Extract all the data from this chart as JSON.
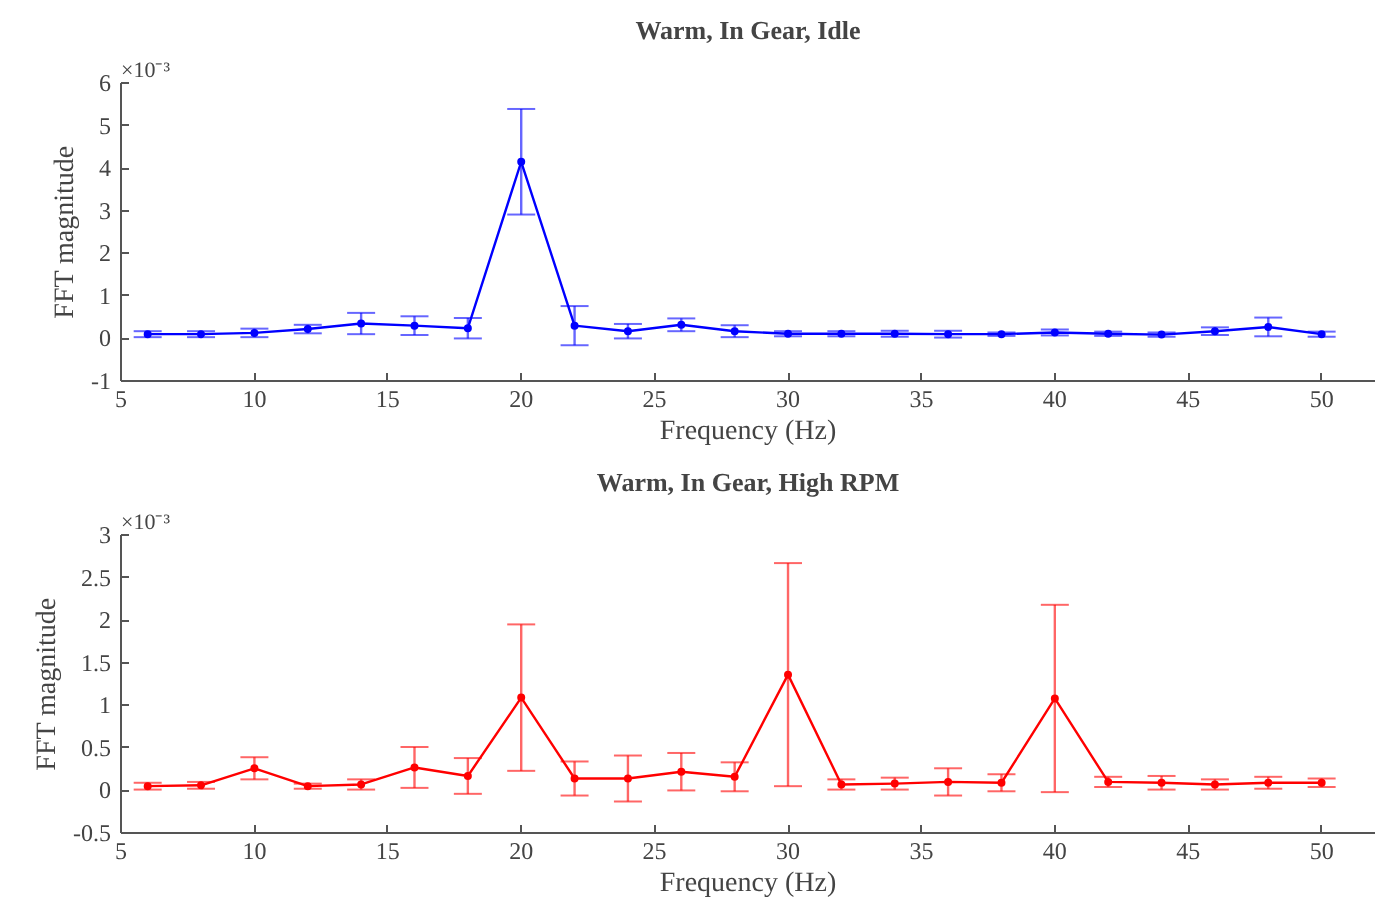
{
  "chart_data": [
    {
      "type": "line",
      "title": "Warm, In Gear, Idle",
      "xlabel": "Frequency (Hz)",
      "ylabel": "FFT magnitude",
      "annotations": [
        "×10⁻³"
      ],
      "marker": "circle",
      "grid": false,
      "x": [
        6,
        8,
        10,
        12,
        14,
        16,
        18,
        20,
        22,
        24,
        26,
        28,
        30,
        32,
        34,
        36,
        38,
        40,
        42,
        44,
        46,
        48,
        50
      ],
      "xlim": [
        5,
        52
      ],
      "xticks": [
        5,
        10,
        15,
        20,
        25,
        30,
        35,
        40,
        45,
        50
      ],
      "ylim": [
        -1,
        6
      ],
      "yticks": [
        -1,
        0,
        1,
        2,
        3,
        4,
        5,
        6
      ],
      "series": [
        {
          "color": "#0000ff",
          "values": [
            0.1,
            0.1,
            0.13,
            0.22,
            0.35,
            0.3,
            0.24,
            4.15,
            0.3,
            0.17,
            0.32,
            0.17,
            0.11,
            0.11,
            0.11,
            0.1,
            0.1,
            0.14,
            0.11,
            0.09,
            0.17,
            0.27,
            0.1
          ],
          "errors": [
            0.07,
            0.07,
            0.1,
            0.1,
            0.25,
            0.22,
            0.24,
            1.24,
            0.46,
            0.17,
            0.15,
            0.14,
            0.06,
            0.06,
            0.07,
            0.08,
            0.04,
            0.07,
            0.05,
            0.05,
            0.09,
            0.22,
            0.06
          ]
        }
      ]
    },
    {
      "type": "line",
      "title": "Warm, In Gear, High RPM",
      "xlabel": "Frequency (Hz)",
      "ylabel": "FFT magnitude",
      "annotations": [
        "×10⁻³"
      ],
      "marker": "circle",
      "grid": false,
      "x": [
        6,
        8,
        10,
        12,
        14,
        16,
        18,
        20,
        22,
        24,
        26,
        28,
        30,
        32,
        34,
        36,
        38,
        40,
        42,
        44,
        46,
        48,
        50
      ],
      "xlim": [
        5,
        52
      ],
      "xticks": [
        5,
        10,
        15,
        20,
        25,
        30,
        35,
        40,
        45,
        50
      ],
      "ylim": [
        -0.5,
        3
      ],
      "yticks": [
        -0.5,
        0,
        0.5,
        1,
        1.5,
        2,
        2.5,
        3
      ],
      "series": [
        {
          "color": "#ff0000",
          "values": [
            0.05,
            0.06,
            0.26,
            0.05,
            0.07,
            0.27,
            0.17,
            1.09,
            0.14,
            0.14,
            0.22,
            0.16,
            1.36,
            0.07,
            0.08,
            0.1,
            0.09,
            1.08,
            0.1,
            0.09,
            0.07,
            0.09,
            0.09
          ],
          "errors": [
            0.04,
            0.04,
            0.13,
            0.03,
            0.06,
            0.24,
            0.21,
            0.86,
            0.2,
            0.27,
            0.22,
            0.17,
            1.31,
            0.06,
            0.07,
            0.16,
            0.1,
            1.1,
            0.06,
            0.08,
            0.06,
            0.07,
            0.05
          ]
        }
      ]
    }
  ]
}
